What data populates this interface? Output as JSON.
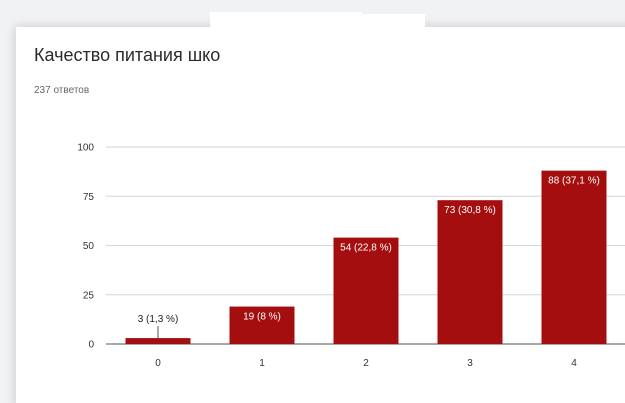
{
  "title": "Качество питания шко",
  "subtitle": "237 ответов",
  "chart_data": {
    "type": "bar",
    "title": "Качество питания шко",
    "subtitle": "237 ответов",
    "categories": [
      "0",
      "1",
      "2",
      "3",
      "4"
    ],
    "values": [
      3,
      19,
      54,
      73,
      88
    ],
    "data_labels": [
      "3 (1,3 %)",
      "19 (8 %)",
      "54 (22,8 %)",
      "73 (30,8 %)",
      "88 (37,1 %)"
    ],
    "ylim": [
      0,
      100
    ],
    "yticks": [
      0,
      25,
      50,
      75,
      100
    ],
    "xlabel": "",
    "ylabel": "",
    "grid": true,
    "bar_color": "#a50e0e",
    "grid_color": "#d6d6d6",
    "label_inside_color": "#ffffff",
    "label_outside_color": "#222222"
  }
}
